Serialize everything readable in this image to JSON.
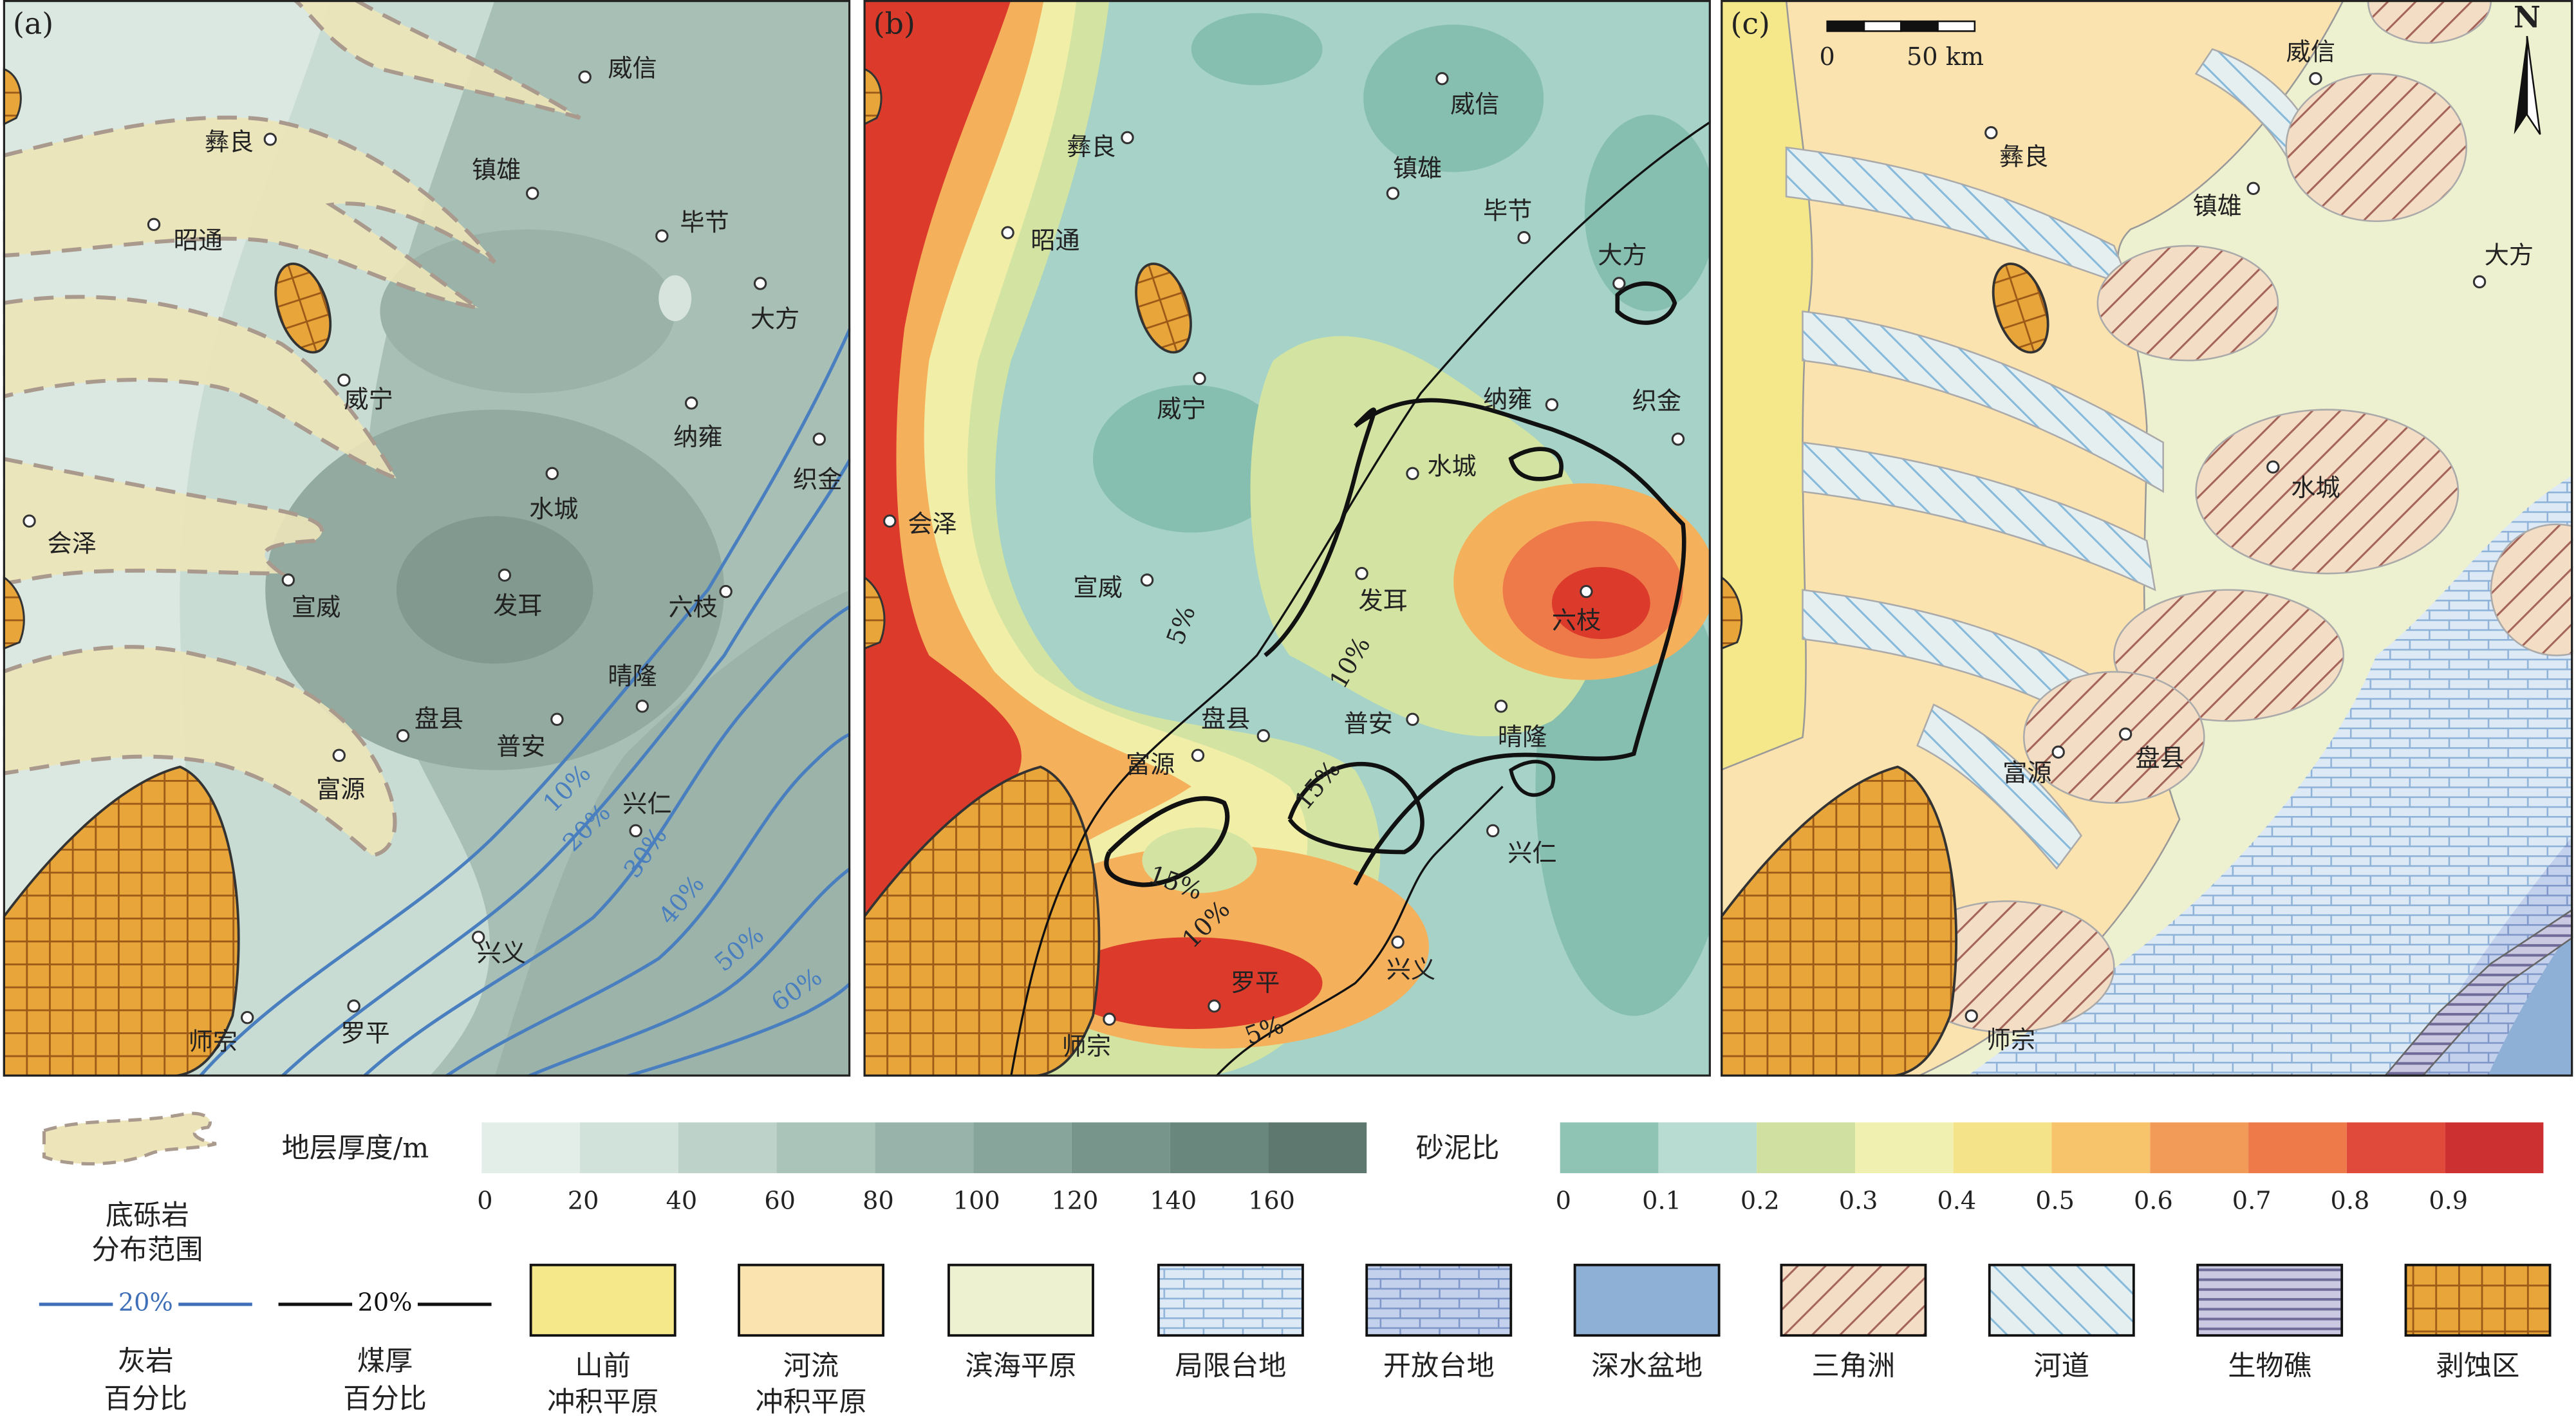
{
  "panels": [
    {
      "label": "(a)",
      "cities": [
        "威信",
        "彝良",
        "镇雄",
        "毕节",
        "昭通",
        "大方",
        "威宁",
        "纳雍",
        "织金",
        "水城",
        "会泽",
        "宣威",
        "发耳",
        "六枝",
        "晴隆",
        "盘县",
        "普安",
        "富源",
        "兴仁",
        "兴义",
        "罗平",
        "师宗"
      ],
      "contour_labels": [
        "10%",
        "20%",
        "30%",
        "40%",
        "50%",
        "60%"
      ]
    },
    {
      "label": "(b)",
      "cities": [
        "威信",
        "彝良",
        "镇雄",
        "毕节",
        "昭通",
        "大方",
        "威宁",
        "纳雍",
        "织金",
        "水城",
        "会泽",
        "宣威",
        "发耳",
        "六枝",
        "晴隆",
        "盘县",
        "普安",
        "富源",
        "兴仁",
        "兴义",
        "罗平",
        "师宗"
      ],
      "contour_labels": [
        "5%",
        "10%",
        "15%",
        "15%",
        "10%",
        "5%"
      ]
    },
    {
      "label": "(c)",
      "cities": [
        "威信",
        "彝良",
        "镇雄",
        "大方",
        "水城",
        "富源",
        "盘县",
        "师宗"
      ],
      "scale_bar": {
        "ticks": [
          0,
          {
            "value": 50,
            "label": "50 km"
          }
        ]
      },
      "north": "N"
    }
  ],
  "legend": {
    "gravel": [
      "底砾岩",
      "分布范围"
    ],
    "limestone": {
      "line_label": "20%",
      "text": [
        "灰岩",
        "百分比"
      ]
    },
    "coal": {
      "line_label": "20%",
      "text": [
        "煤厚",
        "百分比"
      ]
    },
    "thickness": {
      "title": "地层厚度/m",
      "ticks": [
        0,
        20,
        40,
        60,
        80,
        100,
        120,
        140,
        160
      ]
    },
    "sand_mud": {
      "title": "砂泥比",
      "ticks": [
        0,
        0.1,
        0.2,
        0.3,
        0.4,
        0.5,
        0.6,
        0.7,
        0.8,
        0.9
      ]
    },
    "facies": [
      [
        "山前",
        "冲积平原"
      ],
      [
        "河流",
        "冲积平原"
      ],
      [
        "滨海平原"
      ],
      [
        "局限台地"
      ],
      [
        "开放台地"
      ],
      [
        "深水盆地"
      ],
      [
        "三角洲"
      ],
      [
        "河道"
      ],
      [
        "生物礁"
      ],
      [
        "剥蚀区"
      ]
    ]
  }
}
